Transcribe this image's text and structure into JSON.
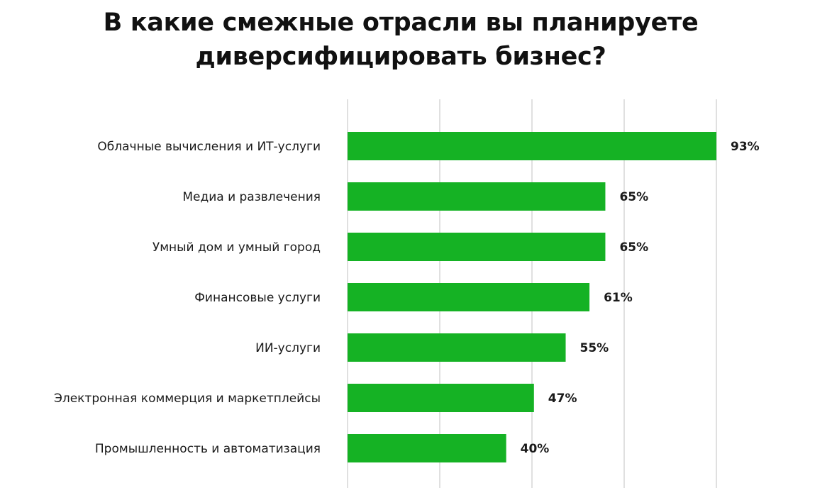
{
  "title": {
    "line1": "В какие смежные отрасли вы планируете",
    "line2": "диверсифицировать бизнес?"
  },
  "colors": {
    "bar": "#15b224",
    "grid": "#d6d6d6",
    "text": "#1a1a1a"
  },
  "chart_data": {
    "type": "bar",
    "orientation": "horizontal",
    "title": "В какие смежные отрасли вы планируете диверсифицировать бизнес?",
    "categories": [
      "Облачные вычисления и ИТ-услуги",
      "Медиа и развлечения",
      "Умный дом и умный город",
      "Финансовые услуги",
      "ИИ-услуги",
      "Электронная коммерция и маркетплейсы",
      "Промышленность и автоматизация"
    ],
    "values": [
      93,
      65,
      65,
      61,
      55,
      47,
      40
    ],
    "value_labels": [
      "93%",
      "65%",
      "65%",
      "61%",
      "55%",
      "47%",
      "40%"
    ],
    "xlim": [
      0,
      93
    ],
    "grid": true,
    "legend": "none"
  }
}
